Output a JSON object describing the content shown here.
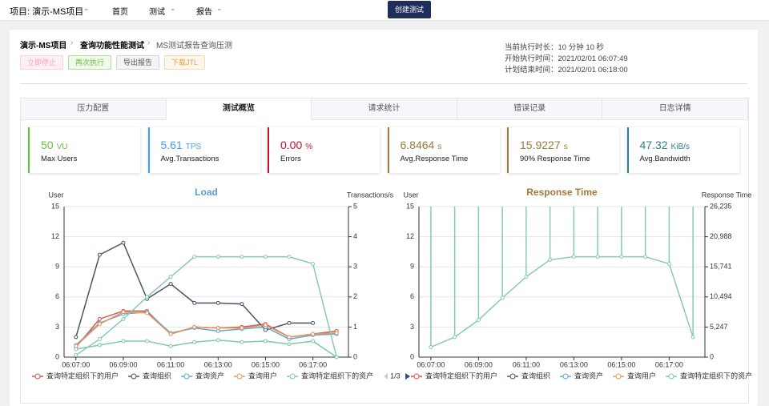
{
  "nav": {
    "project": "项目: 演示-MS项目",
    "items": [
      "首页",
      "测试",
      "报告"
    ],
    "create_button": "创建测试"
  },
  "breadcrumb": [
    "演示-MS项目",
    "查询功能性能测试",
    "MS测试报告查询压测"
  ],
  "buttons": [
    "立即停止",
    "再次执行",
    "导出报告",
    "下载JTL"
  ],
  "run_info": [
    "当前执行时长：10 分钟 10 秒",
    "开始执行时间：2021/02/01 06:07:49",
    "计划结束时间：2021/02/01 06:18:00"
  ],
  "tabs": [
    "压力配置",
    "测试概览",
    "请求统计",
    "错误记录",
    "日志详情"
  ],
  "active_tab": 1,
  "stats": [
    {
      "value": "50",
      "unit": "VU",
      "label": "Max Users",
      "color": "#67c23a"
    },
    {
      "value": "5.61",
      "unit": "TPS",
      "label": "Avg.Transactions",
      "color": "#409eff"
    },
    {
      "value": "0.00",
      "unit": "%",
      "label": "Errors",
      "color": "#c8102e"
    },
    {
      "value": "6.8464",
      "unit": "s",
      "label": "Avg.Response Time",
      "color": "#9b7c3e"
    },
    {
      "value": "15.9227",
      "unit": "s",
      "label": "90% Response Time",
      "color": "#9b7c3e"
    },
    {
      "value": "47.32",
      "unit": "KiB/s",
      "label": "Avg.Bandwidth",
      "color": "#2f7f8f"
    }
  ],
  "charts": [
    {
      "type": "line",
      "title": "Load",
      "title_color": "#5b9bd5",
      "y_label": "User",
      "y2_label": "Transactions/s",
      "categories": [
        "06:07:00",
        null,
        "06:09:00",
        null,
        "06:11:00",
        null,
        "06:13:00",
        null,
        "06:15:00",
        null,
        "06:17:00",
        null
      ],
      "ylim": [
        0,
        15
      ],
      "yticks": [
        0,
        3,
        6,
        9,
        12,
        15
      ],
      "y2lim": [
        0,
        5
      ],
      "y2ticks": [
        0,
        1,
        2,
        3,
        4,
        5
      ],
      "legend_page": "1/3",
      "series": [
        {
          "name": "查询特定组织下的用户",
          "color": "#d9534f",
          "values": [
            1.0,
            3.8,
            4.6,
            4.6,
            2.3,
            3.0,
            2.9,
            3.0,
            3.3,
            2.0,
            2.3,
            2.6
          ]
        },
        {
          "name": "查询组织",
          "color": "#4a5466",
          "values": [
            2.0,
            10.2,
            11.4,
            5.8,
            7.3,
            5.4,
            5.4,
            5.3,
            2.7,
            3.4,
            3.4,
            null
          ]
        },
        {
          "name": "查询资产",
          "color": "#5fa8d3",
          "values": [
            1.2,
            3.4,
            4.3,
            4.5,
            2.4,
            2.9,
            2.6,
            2.8,
            3.0,
            1.8,
            2.2,
            2.3
          ]
        },
        {
          "name": "查询用户",
          "color": "#e8955b",
          "values": [
            1.1,
            3.3,
            4.5,
            4.4,
            2.3,
            3.0,
            2.9,
            2.9,
            3.2,
            2.0,
            2.3,
            2.4
          ]
        },
        {
          "name": "查询特定组织下的资产",
          "color": "#7fc8a9",
          "values": [
            0.8,
            1.2,
            1.6,
            1.6,
            1.1,
            1.5,
            1.7,
            1.5,
            1.6,
            1.3,
            1.6,
            0.0
          ]
        },
        {
          "color": "#86c9b8",
          "values": [
            0.2,
            1.8,
            3.8,
            6.0,
            8.0,
            10.0,
            10.0,
            10.0,
            10.0,
            10.0,
            9.3,
            0.0
          ]
        }
      ]
    },
    {
      "type": "spike",
      "title": "Response Time",
      "title_color": "#a07a3c",
      "y_label": "User",
      "y2_label": "Response Time",
      "categories": [
        "06:07:00",
        null,
        "06:09:00",
        null,
        "06:11:00",
        null,
        "06:13:00",
        null,
        "06:15:00",
        null,
        "06:17:00",
        null
      ],
      "ylim": [
        0,
        15
      ],
      "yticks": [
        0,
        3,
        6,
        9,
        12,
        15
      ],
      "y2lim": [
        0,
        26235
      ],
      "y2ticks": [
        0,
        {
          "value": 5247,
          "label": "5,247"
        },
        {
          "value": 10494,
          "label": "10,494"
        },
        {
          "value": 15741,
          "label": "15,741"
        },
        {
          "value": 20988,
          "label": "20,988"
        },
        {
          "value": 26235,
          "label": "26,235"
        }
      ],
      "legend": [
        "查询特定组织下的用户",
        "查询组织",
        "查询资产",
        "查询用户",
        "查询特定组织下的资产"
      ],
      "legend_colors": [
        "#d9534f",
        "#4a5466",
        "#5fa8d3",
        "#e8955b",
        "#7fc8a9"
      ],
      "series": [
        {
          "color": "#86c9b8",
          "values": [
            1.0,
            2.0,
            3.7,
            5.9,
            8.0,
            9.7,
            10.0,
            10.0,
            10.0,
            10.0,
            9.3,
            2.0
          ]
        }
      ]
    }
  ]
}
